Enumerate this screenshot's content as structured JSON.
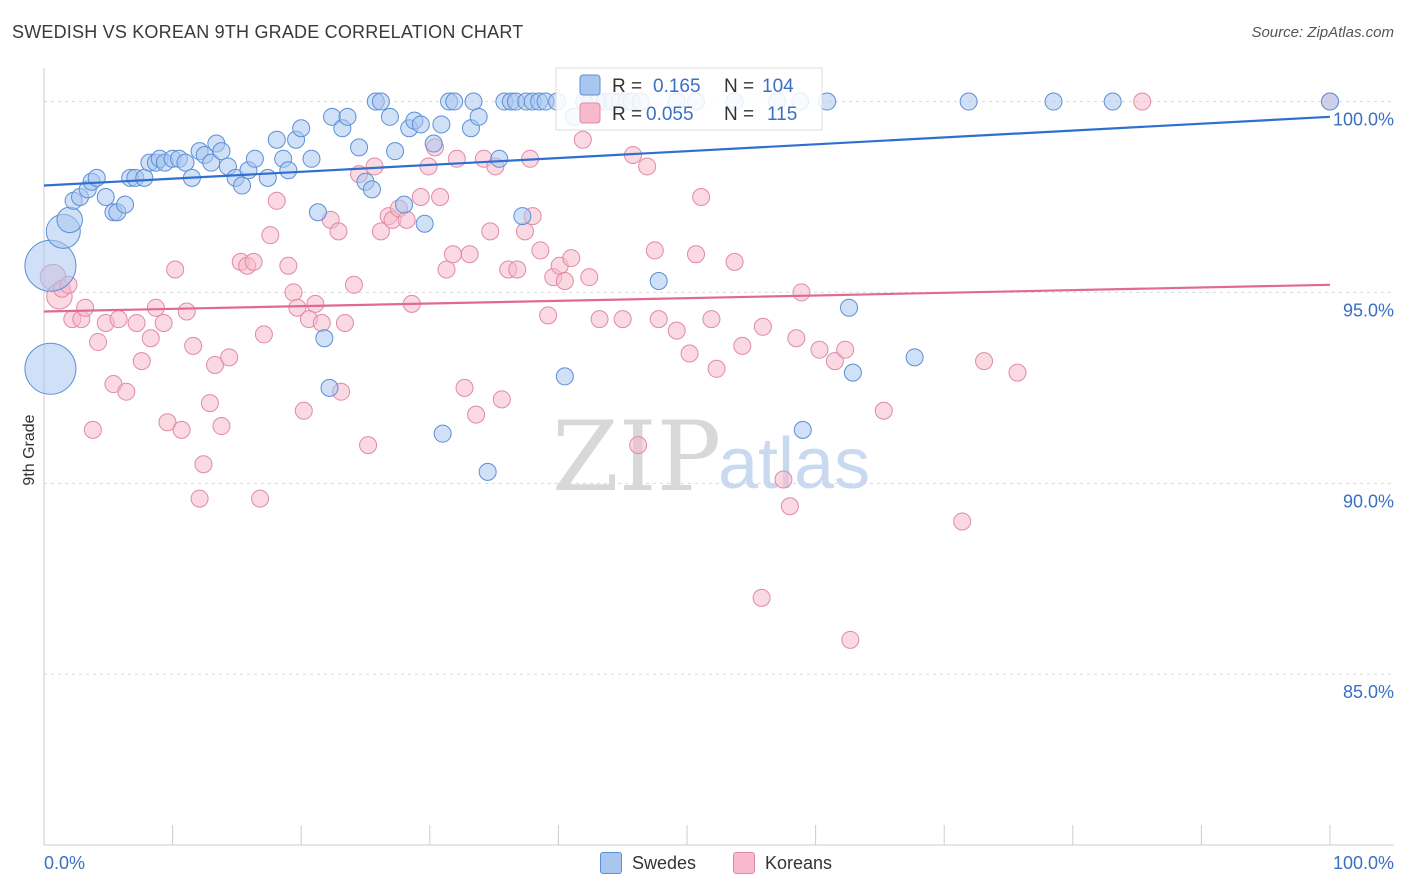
{
  "title": "SWEDISH VS KOREAN 9TH GRADE CORRELATION CHART",
  "source": "Source: ZipAtlas.com",
  "watermark": {
    "zip": "ZIP",
    "atlas": "atlas"
  },
  "colors": {
    "swedes_fill": "#a9c7ee",
    "swedes_stroke": "#5b8fd6",
    "swedes_line": "#2f6fd0",
    "koreans_fill": "#f7b9cb",
    "koreans_stroke": "#e08aa6",
    "koreans_line": "#e06a94",
    "tick_label": "#3b6fc4"
  },
  "legend": {
    "swedes": {
      "r_label": "R =",
      "r_value": "0.165",
      "n_label": "N =",
      "n_value": "104"
    },
    "koreans": {
      "r_label": "R =",
      "r_value": "0.055",
      "n_label": "N =",
      "n_value": "115"
    }
  },
  "bottom_legend": [
    "Swedes",
    "Koreans"
  ],
  "chart_data": {
    "type": "scatter",
    "title": "SWEDISH VS KOREAN 9TH GRADE CORRELATION CHART",
    "xlabel": "",
    "ylabel": "9th Grade",
    "xlim": [
      0,
      100
    ],
    "ylim": [
      80.5,
      100.8
    ],
    "x_tick_labels": [
      "0.0%",
      "100.0%"
    ],
    "y_ticks": [
      85,
      90,
      95,
      100
    ],
    "y_tick_labels": [
      "85.0%",
      "90.0%",
      "95.0%",
      "100.0%"
    ],
    "grid": true,
    "legend_position": "top-center",
    "series": [
      {
        "name": "Swedes",
        "r": 0.165,
        "n": 104,
        "trend": [
          [
            0,
            97.8
          ],
          [
            100,
            99.6
          ]
        ],
        "points": [
          [
            0.5,
            95.7,
            3
          ],
          [
            0.5,
            93.0,
            3
          ],
          [
            1.5,
            96.6,
            2
          ],
          [
            2.0,
            96.9,
            1.5
          ],
          [
            2.3,
            97.4,
            1
          ],
          [
            2.8,
            97.5,
            1
          ],
          [
            3.4,
            97.7,
            1
          ],
          [
            3.7,
            97.9,
            1
          ],
          [
            4.1,
            98.0,
            1
          ],
          [
            4.8,
            97.5,
            1
          ],
          [
            5.4,
            97.1,
            1
          ],
          [
            5.7,
            97.1,
            1
          ],
          [
            6.3,
            97.3,
            1
          ],
          [
            6.7,
            98.0,
            1
          ],
          [
            7.1,
            98.0,
            1
          ],
          [
            7.8,
            98.0,
            1
          ],
          [
            8.2,
            98.4,
            1
          ],
          [
            8.7,
            98.4,
            1
          ],
          [
            9.0,
            98.5,
            1
          ],
          [
            9.4,
            98.4,
            1
          ],
          [
            10.0,
            98.5,
            1
          ],
          [
            10.5,
            98.5,
            1
          ],
          [
            11.0,
            98.4,
            1
          ],
          [
            11.5,
            98.0,
            1
          ],
          [
            12.1,
            98.7,
            1
          ],
          [
            12.5,
            98.6,
            1
          ],
          [
            13.0,
            98.4,
            1
          ],
          [
            13.4,
            98.9,
            1
          ],
          [
            13.8,
            98.7,
            1
          ],
          [
            14.3,
            98.3,
            1
          ],
          [
            14.9,
            98.0,
            1
          ],
          [
            15.4,
            97.8,
            1
          ],
          [
            15.9,
            98.2,
            1
          ],
          [
            16.4,
            98.5,
            1
          ],
          [
            17.4,
            98.0,
            1
          ],
          [
            18.1,
            99.0,
            1
          ],
          [
            18.6,
            98.5,
            1
          ],
          [
            19.0,
            98.2,
            1
          ],
          [
            19.6,
            99.0,
            1
          ],
          [
            20.0,
            99.3,
            1
          ],
          [
            20.8,
            98.5,
            1
          ],
          [
            21.3,
            97.1,
            1
          ],
          [
            21.8,
            93.8,
            1
          ],
          [
            22.4,
            99.6,
            1
          ],
          [
            23.2,
            99.3,
            1
          ],
          [
            23.6,
            99.6,
            1
          ],
          [
            24.5,
            98.8,
            1
          ],
          [
            25.0,
            97.9,
            1
          ],
          [
            25.5,
            97.7,
            1
          ],
          [
            25.8,
            100.0,
            1
          ],
          [
            26.2,
            100.0,
            1
          ],
          [
            26.9,
            99.6,
            1
          ],
          [
            27.3,
            98.7,
            1
          ],
          [
            28.0,
            97.3,
            1
          ],
          [
            28.4,
            99.3,
            1
          ],
          [
            28.8,
            99.5,
            1
          ],
          [
            29.3,
            99.4,
            1
          ],
          [
            29.6,
            96.8,
            1
          ],
          [
            30.3,
            98.9,
            1
          ],
          [
            30.9,
            99.4,
            1
          ],
          [
            31.0,
            91.3,
            1
          ],
          [
            31.5,
            100.0,
            1
          ],
          [
            31.9,
            100.0,
            1
          ],
          [
            33.2,
            99.3,
            1
          ],
          [
            33.4,
            100.0,
            1
          ],
          [
            33.8,
            99.6,
            1
          ],
          [
            34.5,
            90.3,
            1
          ],
          [
            35.4,
            98.5,
            1
          ],
          [
            35.8,
            100.0,
            1
          ],
          [
            36.3,
            100.0,
            1
          ],
          [
            36.7,
            100.0,
            1
          ],
          [
            37.2,
            97.0,
            1
          ],
          [
            37.5,
            100.0,
            1
          ],
          [
            38.0,
            100.0,
            1
          ],
          [
            38.5,
            100.0,
            1
          ],
          [
            39.0,
            100.0,
            1
          ],
          [
            39.9,
            100.0,
            1
          ],
          [
            40.5,
            92.8,
            1
          ],
          [
            41.2,
            99.6,
            1
          ],
          [
            42.0,
            100.0,
            1
          ],
          [
            42.5,
            100.0,
            1
          ],
          [
            43.1,
            100.0,
            1
          ],
          [
            43.6,
            100.0,
            1
          ],
          [
            44.2,
            100.0,
            1
          ],
          [
            44.8,
            100.0,
            1
          ],
          [
            45.3,
            100.0,
            1
          ],
          [
            45.7,
            100.0,
            1
          ],
          [
            46.4,
            100.0,
            1
          ],
          [
            47.8,
            95.3,
            1
          ],
          [
            49.2,
            100.0,
            1
          ],
          [
            50.7,
            100.0,
            1
          ],
          [
            53.7,
            100.0,
            1
          ],
          [
            57.0,
            100.0,
            1
          ],
          [
            58.8,
            100.0,
            1
          ],
          [
            60.9,
            100.0,
            1
          ],
          [
            67.7,
            93.3,
            1
          ],
          [
            62.6,
            94.6,
            1
          ],
          [
            62.9,
            92.9,
            1
          ],
          [
            59.0,
            91.4,
            1
          ],
          [
            71.9,
            100.0,
            1
          ],
          [
            78.5,
            100.0,
            1
          ],
          [
            83.1,
            100.0,
            1
          ],
          [
            100.0,
            100.0,
            1
          ],
          [
            22.2,
            92.5,
            1
          ]
        ]
      },
      {
        "name": "Koreans",
        "r": 0.055,
        "n": 115,
        "trend": [
          [
            0,
            94.5
          ],
          [
            100,
            95.2
          ]
        ],
        "points": [
          [
            0.7,
            95.4,
            1.5
          ],
          [
            1.2,
            94.9,
            1.5
          ],
          [
            1.4,
            95.1,
            1
          ],
          [
            1.9,
            95.2,
            1
          ],
          [
            2.2,
            94.3,
            1
          ],
          [
            2.9,
            94.3,
            1
          ],
          [
            3.2,
            94.6,
            1
          ],
          [
            3.8,
            91.4,
            1
          ],
          [
            4.2,
            93.7,
            1
          ],
          [
            4.8,
            94.2,
            1
          ],
          [
            5.4,
            92.6,
            1
          ],
          [
            5.8,
            94.3,
            1
          ],
          [
            6.4,
            92.4,
            1
          ],
          [
            7.2,
            94.2,
            1
          ],
          [
            7.6,
            93.2,
            1
          ],
          [
            8.3,
            93.8,
            1
          ],
          [
            8.7,
            94.6,
            1
          ],
          [
            9.3,
            94.2,
            1
          ],
          [
            9.6,
            91.6,
            1
          ],
          [
            10.2,
            95.6,
            1
          ],
          [
            10.7,
            91.4,
            1
          ],
          [
            11.1,
            94.5,
            1
          ],
          [
            11.6,
            93.6,
            1
          ],
          [
            12.1,
            89.6,
            1
          ],
          [
            12.4,
            90.5,
            1
          ],
          [
            12.9,
            92.1,
            1
          ],
          [
            13.3,
            93.1,
            1
          ],
          [
            13.8,
            91.5,
            1
          ],
          [
            14.4,
            93.3,
            1
          ],
          [
            15.3,
            95.8,
            1
          ],
          [
            15.8,
            95.7,
            1
          ],
          [
            16.3,
            95.8,
            1
          ],
          [
            16.8,
            89.6,
            1
          ],
          [
            17.1,
            93.9,
            1
          ],
          [
            17.6,
            96.5,
            1
          ],
          [
            18.1,
            97.4,
            1
          ],
          [
            19.0,
            95.7,
            1
          ],
          [
            19.4,
            95.0,
            1
          ],
          [
            19.7,
            94.6,
            1
          ],
          [
            20.2,
            91.9,
            1
          ],
          [
            20.6,
            94.3,
            1
          ],
          [
            21.1,
            94.7,
            1
          ],
          [
            21.6,
            94.2,
            1
          ],
          [
            22.3,
            96.9,
            1
          ],
          [
            23.1,
            92.4,
            1
          ],
          [
            23.4,
            94.2,
            1
          ],
          [
            24.1,
            95.2,
            1
          ],
          [
            24.5,
            98.1,
            1
          ],
          [
            25.2,
            91.0,
            1
          ],
          [
            25.7,
            98.3,
            1
          ],
          [
            26.2,
            96.6,
            1
          ],
          [
            26.8,
            97.0,
            1
          ],
          [
            27.1,
            96.9,
            1
          ],
          [
            27.6,
            97.2,
            1
          ],
          [
            28.2,
            96.9,
            1
          ],
          [
            28.6,
            94.7,
            1
          ],
          [
            29.3,
            97.5,
            1
          ],
          [
            29.9,
            98.3,
            1
          ],
          [
            30.4,
            98.8,
            1
          ],
          [
            30.8,
            97.5,
            1
          ],
          [
            31.3,
            95.6,
            1
          ],
          [
            32.1,
            98.5,
            1
          ],
          [
            32.7,
            92.5,
            1
          ],
          [
            33.1,
            96.0,
            1
          ],
          [
            33.6,
            91.8,
            1
          ],
          [
            34.2,
            98.5,
            1
          ],
          [
            34.7,
            96.6,
            1
          ],
          [
            35.1,
            98.3,
            1
          ],
          [
            35.6,
            92.2,
            1
          ],
          [
            36.1,
            95.6,
            1
          ],
          [
            36.8,
            95.6,
            1
          ],
          [
            37.4,
            96.6,
            1
          ],
          [
            38.0,
            97.0,
            1
          ],
          [
            38.6,
            96.1,
            1
          ],
          [
            39.2,
            94.4,
            1
          ],
          [
            39.6,
            95.4,
            1
          ],
          [
            40.1,
            95.7,
            1
          ],
          [
            40.5,
            95.3,
            1
          ],
          [
            41.0,
            95.9,
            1
          ],
          [
            41.9,
            99.0,
            1
          ],
          [
            42.4,
            95.4,
            1
          ],
          [
            43.2,
            94.3,
            1
          ],
          [
            45.0,
            94.3,
            1
          ],
          [
            46.2,
            91.0,
            1
          ],
          [
            46.9,
            98.3,
            1
          ],
          [
            47.5,
            96.1,
            1
          ],
          [
            47.8,
            94.3,
            1
          ],
          [
            49.2,
            94.0,
            1
          ],
          [
            50.2,
            93.4,
            1
          ],
          [
            50.7,
            96.0,
            1
          ],
          [
            51.1,
            97.5,
            1
          ],
          [
            51.9,
            94.3,
            1
          ],
          [
            52.3,
            93.0,
            1
          ],
          [
            53.7,
            95.8,
            1
          ],
          [
            54.3,
            93.6,
            1
          ],
          [
            55.8,
            87.0,
            1
          ],
          [
            55.9,
            94.1,
            1
          ],
          [
            57.5,
            90.1,
            1
          ],
          [
            58.0,
            89.4,
            1
          ],
          [
            58.5,
            93.8,
            1
          ],
          [
            58.9,
            95.0,
            1
          ],
          [
            60.3,
            93.5,
            1
          ],
          [
            61.5,
            93.2,
            1
          ],
          [
            62.3,
            93.5,
            1
          ],
          [
            62.7,
            85.9,
            1
          ],
          [
            65.3,
            91.9,
            1
          ],
          [
            71.4,
            89.0,
            1
          ],
          [
            73.1,
            93.2,
            1
          ],
          [
            75.7,
            92.9,
            1
          ],
          [
            85.4,
            100.0,
            1
          ],
          [
            100.0,
            100.0,
            1
          ],
          [
            45.8,
            98.6,
            1
          ],
          [
            37.8,
            98.5,
            1
          ],
          [
            22.9,
            96.6,
            1
          ],
          [
            31.8,
            96.0,
            1
          ]
        ]
      }
    ]
  }
}
